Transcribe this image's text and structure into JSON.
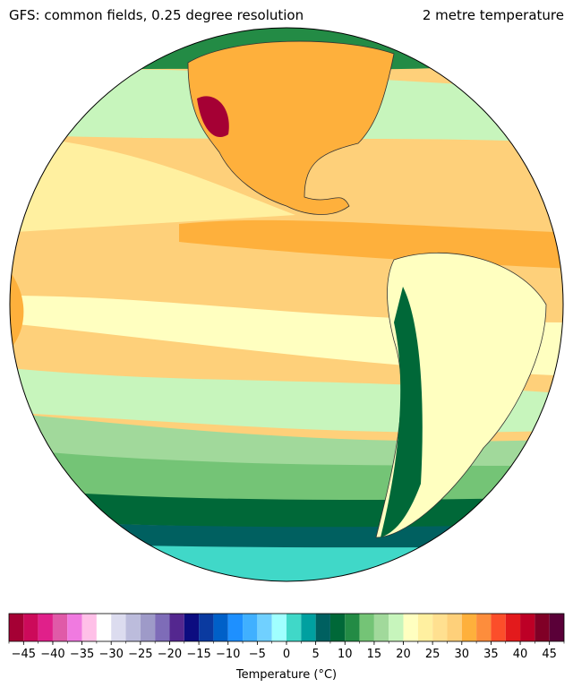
{
  "header": {
    "left_title": "GFS: common fields, 0.25 degree resolution",
    "right_title": "2 metre temperature"
  },
  "colorbar": {
    "label": "Temperature (°C)",
    "boundaries": [
      -47.5,
      -45,
      -42.5,
      -40,
      -37.5,
      -35,
      -32.5,
      -30,
      -27.5,
      -25,
      -22.5,
      -20,
      -17.5,
      -15,
      -12.5,
      -10,
      -7.5,
      -5,
      -2.5,
      0,
      2.5,
      5,
      7.5,
      10,
      12.5,
      15,
      17.5,
      20,
      22.5,
      25,
      27.5,
      30,
      32.5,
      35,
      37.5,
      40,
      42.5,
      45,
      47.5
    ],
    "colors": [
      "#a50034",
      "#cc0a5a",
      "#e0208a",
      "#e05aa8",
      "#f07ae0",
      "#ffc0e8",
      "#ffffff",
      "#dcdcef",
      "#bcbcdc",
      "#9e9ac8",
      "#7e6cb8",
      "#54278f",
      "#0c0c80",
      "#0a3aa0",
      "#0060c8",
      "#1e90ff",
      "#40b0ff",
      "#70d0ff",
      "#a0ffff",
      "#40d8c8",
      "#00a0a0",
      "#006060",
      "#006838",
      "#238b45",
      "#74c476",
      "#a1d99b",
      "#c7f5bc",
      "#ffffc0",
      "#fff0a0",
      "#ffe090",
      "#fed07a",
      "#feb03c",
      "#fd8d3c",
      "#fc4e2a",
      "#e31a1c",
      "#bd0026",
      "#800026",
      "#5a0038",
      "#2a0020"
    ],
    "ticks": [
      {
        "value": -45,
        "label": "−45"
      },
      {
        "value": -40,
        "label": "−40"
      },
      {
        "value": -35,
        "label": "−35"
      },
      {
        "value": -30,
        "label": "−30"
      },
      {
        "value": -25,
        "label": "−25"
      },
      {
        "value": -20,
        "label": "−20"
      },
      {
        "value": -15,
        "label": "−15"
      },
      {
        "value": -10,
        "label": "−10"
      },
      {
        "value": -5,
        "label": "−5"
      },
      0,
      5,
      10,
      15,
      20,
      25,
      30,
      35,
      40,
      45
    ]
  }
}
